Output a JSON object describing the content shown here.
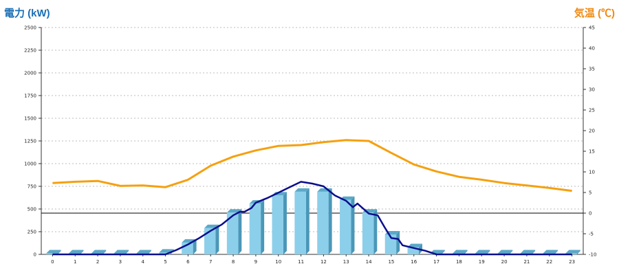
{
  "chart_data": {
    "type": "bar",
    "title": "",
    "left_axis": {
      "label": "電力 (kW)",
      "color": "#1a6fb5",
      "range": [
        0,
        2500
      ],
      "ticks": [
        0,
        250,
        500,
        750,
        1000,
        1250,
        1500,
        1750,
        2000,
        2250,
        2500
      ]
    },
    "right_axis": {
      "label": "気温 (℃)",
      "color": "#f08a12",
      "range": [
        -10,
        45
      ],
      "ticks": [
        -10,
        -5,
        0,
        5,
        10,
        15,
        20,
        25,
        30,
        35,
        40,
        45
      ]
    },
    "x": {
      "categories": [
        "0",
        "1",
        "2",
        "3",
        "4",
        "5",
        "6",
        "7",
        "8",
        "9",
        "10",
        "11",
        "12",
        "13",
        "14",
        "15",
        "16",
        "17",
        "18",
        "19",
        "20",
        "21",
        "22",
        "23"
      ]
    },
    "grid": true,
    "series": [
      {
        "type": "bar",
        "axis": "left",
        "color": "#8ccfea",
        "values": [
          0,
          0,
          0,
          0,
          0,
          20,
          130,
          290,
          460,
          560,
          650,
          690,
          690,
          600,
          460,
          220,
          80,
          0,
          0,
          0,
          0,
          0,
          0,
          0
        ]
      },
      {
        "type": "line",
        "axis": "left",
        "color": "#0b0e8c",
        "x": [
          0,
          1,
          2,
          3,
          4,
          5,
          5.5,
          6,
          6.5,
          7,
          7.5,
          8,
          8.3,
          8.5,
          8.8,
          9,
          9.5,
          10,
          10.5,
          11,
          11.5,
          12,
          12.5,
          13,
          13.3,
          13.5,
          14,
          14.4,
          14.7,
          15,
          15.3,
          15.5,
          16,
          16.5,
          17,
          18,
          19,
          20,
          21,
          22,
          23
        ],
        "values": [
          0,
          0,
          0,
          0,
          0,
          0,
          50,
          110,
          180,
          260,
          330,
          430,
          470,
          470,
          510,
          570,
          620,
          680,
          740,
          800,
          780,
          750,
          650,
          590,
          520,
          560,
          450,
          430,
          300,
          180,
          170,
          100,
          70,
          40,
          0,
          0,
          0,
          0,
          0,
          0,
          0
        ]
      },
      {
        "type": "line",
        "axis": "right",
        "color": "#f5a00f",
        "x": [
          0,
          1,
          2,
          3,
          4,
          5,
          6,
          7,
          8,
          9,
          10,
          11,
          12,
          13,
          14,
          15,
          16,
          17,
          18,
          19,
          20,
          21,
          22,
          23
        ],
        "values": [
          7.3,
          7.6,
          7.8,
          6.6,
          6.7,
          6.3,
          8.1,
          11.5,
          13.7,
          15.2,
          16.3,
          16.5,
          17.2,
          17.7,
          17.5,
          14.6,
          11.8,
          10.1,
          8.8,
          8.1,
          7.3,
          6.7,
          6.1,
          5.4
        ]
      }
    ]
  }
}
